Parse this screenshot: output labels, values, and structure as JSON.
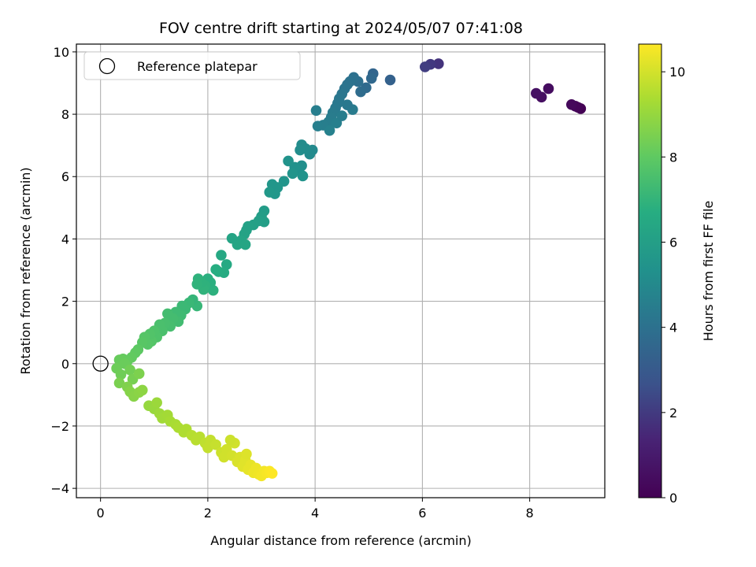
{
  "chart_data": {
    "type": "scatter",
    "title": "FOV centre drift starting at 2024/05/07 07:41:08",
    "xlabel": "Angular distance from reference (arcmin)",
    "ylabel": "Rotation from reference (arcmin)",
    "xlim": [
      -0.45,
      9.4
    ],
    "ylim": [
      -4.3,
      10.25
    ],
    "x_ticks": [
      0,
      2,
      4,
      6,
      8
    ],
    "y_ticks": [
      -4,
      -2,
      0,
      2,
      4,
      6,
      8,
      10
    ],
    "grid": true,
    "legend": {
      "position": "top-left",
      "entries": [
        "Reference platepar"
      ]
    },
    "reference_point": {
      "x": 0,
      "y": 0,
      "label": "Reference platepar"
    },
    "colorbar": {
      "label": "Hours from first FF file",
      "colormap": "viridis",
      "range": [
        0,
        10.65
      ],
      "ticks": [
        0,
        2,
        4,
        6,
        8,
        10
      ]
    },
    "points_format": [
      "x_arcmin",
      "y_arcmin",
      "hours"
    ],
    "points": [
      [
        8.95,
        8.18,
        0.0
      ],
      [
        8.9,
        8.22,
        0.1
      ],
      [
        8.85,
        8.26,
        0.2
      ],
      [
        8.78,
        8.31,
        0.3
      ],
      [
        8.35,
        8.82,
        0.45
      ],
      [
        8.22,
        8.55,
        0.55
      ],
      [
        8.12,
        8.67,
        0.65
      ],
      [
        6.3,
        9.62,
        1.8
      ],
      [
        6.15,
        9.6,
        1.95
      ],
      [
        6.05,
        9.52,
        2.1
      ],
      [
        5.4,
        9.1,
        3.3
      ],
      [
        5.08,
        9.3,
        3.5
      ],
      [
        5.05,
        9.15,
        3.6
      ],
      [
        4.95,
        8.85,
        3.7
      ],
      [
        4.85,
        8.72,
        3.8
      ],
      [
        4.8,
        9.05,
        3.9
      ],
      [
        4.72,
        9.18,
        4.0
      ],
      [
        4.65,
        9.05,
        4.05
      ],
      [
        4.6,
        8.95,
        4.1
      ],
      [
        4.55,
        8.82,
        4.15
      ],
      [
        4.5,
        8.65,
        4.2
      ],
      [
        4.45,
        8.5,
        4.25
      ],
      [
        4.42,
        8.35,
        4.3
      ],
      [
        4.38,
        8.2,
        4.35
      ],
      [
        4.33,
        8.05,
        4.4
      ],
      [
        4.3,
        7.9,
        4.45
      ],
      [
        4.25,
        7.75,
        4.5
      ],
      [
        4.15,
        7.65,
        4.55
      ],
      [
        4.05,
        7.62,
        4.6
      ],
      [
        4.02,
        8.12,
        4.55
      ],
      [
        4.27,
        7.48,
        4.65
      ],
      [
        4.4,
        7.72,
        4.6
      ],
      [
        4.5,
        7.95,
        4.5
      ],
      [
        4.7,
        8.15,
        4.4
      ],
      [
        4.6,
        8.3,
        4.3
      ],
      [
        3.95,
        6.85,
        5.0
      ],
      [
        3.9,
        6.72,
        5.05
      ],
      [
        3.82,
        6.9,
        5.1
      ],
      [
        3.75,
        7.02,
        5.1
      ],
      [
        3.72,
        6.85,
        5.15
      ],
      [
        3.75,
        6.35,
        5.25
      ],
      [
        3.7,
        6.2,
        5.3
      ],
      [
        3.62,
        6.3,
        5.35
      ],
      [
        3.77,
        6.02,
        5.4
      ],
      [
        3.58,
        6.1,
        5.45
      ],
      [
        3.5,
        6.5,
        5.4
      ],
      [
        3.42,
        5.85,
        5.5
      ],
      [
        3.3,
        5.65,
        5.55
      ],
      [
        3.25,
        5.45,
        5.6
      ],
      [
        3.2,
        5.75,
        5.55
      ],
      [
        3.15,
        5.5,
        5.65
      ],
      [
        3.05,
        4.9,
        5.85
      ],
      [
        3.0,
        4.72,
        5.9
      ],
      [
        3.05,
        4.55,
        5.95
      ],
      [
        2.95,
        4.58,
        6.0
      ],
      [
        2.85,
        4.45,
        6.05
      ],
      [
        2.75,
        4.4,
        6.1
      ],
      [
        2.72,
        4.28,
        6.1
      ],
      [
        2.68,
        4.15,
        6.15
      ],
      [
        2.62,
        3.95,
        6.25
      ],
      [
        2.55,
        3.82,
        6.3
      ],
      [
        2.45,
        4.02,
        6.25
      ],
      [
        2.7,
        3.82,
        6.3
      ],
      [
        2.35,
        3.18,
        6.5
      ],
      [
        2.25,
        3.48,
        6.45
      ],
      [
        2.3,
        2.92,
        6.6
      ],
      [
        2.2,
        2.95,
        6.65
      ],
      [
        2.15,
        3.02,
        6.7
      ],
      [
        2.1,
        2.35,
        6.85
      ],
      [
        2.05,
        2.6,
        6.8
      ],
      [
        2.0,
        2.72,
        6.8
      ],
      [
        1.95,
        2.5,
        6.9
      ],
      [
        1.92,
        2.38,
        6.95
      ],
      [
        1.88,
        2.6,
        6.9
      ],
      [
        1.82,
        2.72,
        6.9
      ],
      [
        1.8,
        2.55,
        6.95
      ],
      [
        1.8,
        1.85,
        7.1
      ],
      [
        1.72,
        2.05,
        7.05
      ],
      [
        1.65,
        1.95,
        7.15
      ],
      [
        1.58,
        1.75,
        7.2
      ],
      [
        1.52,
        1.85,
        7.2
      ],
      [
        1.5,
        1.55,
        7.3
      ],
      [
        1.45,
        1.35,
        7.35
      ],
      [
        1.4,
        1.65,
        7.3
      ],
      [
        1.35,
        1.45,
        7.4
      ],
      [
        1.3,
        1.2,
        7.45
      ],
      [
        1.25,
        1.6,
        7.4
      ],
      [
        1.2,
        1.3,
        7.5
      ],
      [
        1.15,
        1.05,
        7.55
      ],
      [
        1.1,
        1.25,
        7.55
      ],
      [
        1.05,
        0.85,
        7.65
      ],
      [
        1.0,
        1.05,
        7.65
      ],
      [
        0.95,
        0.72,
        7.75
      ],
      [
        0.92,
        0.95,
        7.7
      ],
      [
        0.88,
        0.62,
        7.8
      ],
      [
        0.82,
        0.85,
        7.8
      ],
      [
        0.78,
        0.68,
        7.85
      ],
      [
        0.7,
        0.45,
        7.95
      ],
      [
        0.65,
        0.35,
        8.0
      ],
      [
        0.58,
        0.2,
        8.05
      ],
      [
        0.5,
        0.08,
        8.1
      ],
      [
        0.42,
        0.15,
        8.1
      ],
      [
        0.35,
        0.12,
        8.15
      ],
      [
        0.3,
        -0.15,
        8.25
      ],
      [
        0.38,
        -0.35,
        8.3
      ],
      [
        0.45,
        0.0,
        8.2
      ],
      [
        0.55,
        -0.2,
        8.35
      ],
      [
        0.6,
        -0.5,
        8.45
      ],
      [
        0.35,
        -0.62,
        8.5
      ],
      [
        0.5,
        -0.75,
        8.6
      ],
      [
        0.55,
        -0.9,
        8.7
      ],
      [
        0.62,
        -1.05,
        8.75
      ],
      [
        0.72,
        -0.92,
        8.8
      ],
      [
        0.78,
        -0.85,
        8.85
      ],
      [
        0.72,
        -0.32,
        8.55
      ],
      [
        0.9,
        -1.35,
        9.0
      ],
      [
        1.0,
        -1.45,
        9.05
      ],
      [
        1.1,
        -1.6,
        9.15
      ],
      [
        1.05,
        -1.25,
        9.1
      ],
      [
        1.15,
        -1.75,
        9.2
      ],
      [
        1.25,
        -1.65,
        9.25
      ],
      [
        1.3,
        -1.85,
        9.3
      ],
      [
        1.4,
        -1.95,
        9.35
      ],
      [
        1.45,
        -2.05,
        9.4
      ],
      [
        1.55,
        -2.2,
        9.45
      ],
      [
        1.6,
        -2.1,
        9.45
      ],
      [
        1.7,
        -2.3,
        9.55
      ],
      [
        1.78,
        -2.45,
        9.6
      ],
      [
        1.85,
        -2.35,
        9.6
      ],
      [
        1.95,
        -2.55,
        9.7
      ],
      [
        2.0,
        -2.7,
        9.75
      ],
      [
        2.05,
        -2.45,
        9.75
      ],
      [
        2.15,
        -2.6,
        9.8
      ],
      [
        2.25,
        -2.85,
        9.9
      ],
      [
        2.3,
        -3.0,
        9.95
      ],
      [
        2.35,
        -2.75,
        9.95
      ],
      [
        2.45,
        -2.95,
        10.0
      ],
      [
        2.5,
        -2.55,
        9.95
      ],
      [
        2.55,
        -3.15,
        10.1
      ],
      [
        2.6,
        -3.0,
        10.1
      ],
      [
        2.65,
        -3.3,
        10.2
      ],
      [
        2.7,
        -3.1,
        10.2
      ],
      [
        2.75,
        -3.4,
        10.3
      ],
      [
        2.8,
        -3.25,
        10.3
      ],
      [
        2.85,
        -3.5,
        10.4
      ],
      [
        2.9,
        -3.35,
        10.4
      ],
      [
        2.95,
        -3.55,
        10.45
      ],
      [
        3.0,
        -3.6,
        10.5
      ],
      [
        3.05,
        -3.45,
        10.5
      ],
      [
        3.1,
        -3.5,
        10.55
      ],
      [
        3.15,
        -3.45,
        10.6
      ],
      [
        3.2,
        -3.52,
        10.65
      ],
      [
        2.72,
        -2.9,
        10.15
      ],
      [
        2.42,
        -2.45,
        9.9
      ]
    ]
  }
}
